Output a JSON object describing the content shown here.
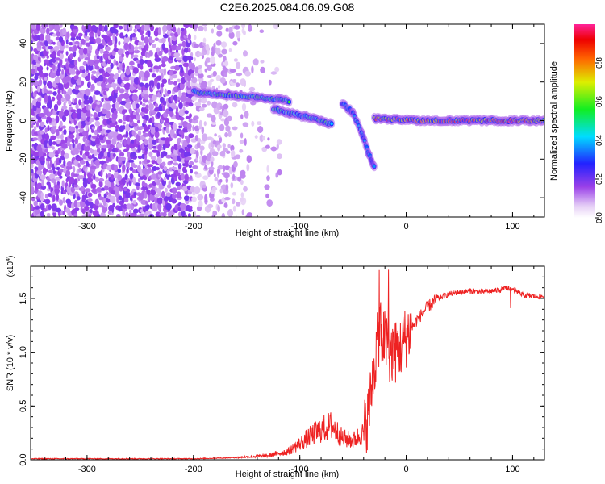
{
  "figure": {
    "title": "C2E6.2025.084.06.09.G08"
  },
  "colors": {
    "background": "#ffffff",
    "axis": "#000000",
    "snr_line": "#ee2222"
  },
  "chart_data": [
    {
      "type": "heatmap",
      "title": "C2E6.2025.084.06.09.G08",
      "xlabel": "Height of straight line (km)",
      "ylabel": "Frequency (Hz)",
      "xlim": [
        -353,
        130
      ],
      "ylim": [
        -50,
        50
      ],
      "x_ticks": [
        -300,
        -200,
        -100,
        0,
        100
      ],
      "y_ticks": [
        -40,
        -20,
        0,
        20,
        40
      ],
      "colorbar": {
        "label": "Normalized spectral amplitude",
        "ticks": [
          "0.0",
          "0.2",
          "0.4",
          "0.6",
          "0.8"
        ],
        "range": [
          0,
          1
        ],
        "colormap": "rainbow (purple-blue-cyan-green-yellow-red-magenta)"
      },
      "ridges": [
        {
          "x": [
            -200,
            -180,
            -160,
            -140,
            -120,
            -110
          ],
          "y": [
            15,
            14,
            13,
            12,
            11,
            10
          ],
          "amp": 0.55
        },
        {
          "x": [
            -125,
            -110,
            -95,
            -80,
            -70
          ],
          "y": [
            6,
            4,
            2,
            0,
            -2
          ],
          "amp": 0.5
        },
        {
          "x": [
            -60,
            -50,
            -42,
            -36,
            -30
          ],
          "y": [
            9,
            4,
            -6,
            -16,
            -24
          ],
          "amp": 0.35
        },
        {
          "x": [
            -30,
            -10,
            10,
            40,
            80,
            130
          ],
          "y": [
            1,
            0.5,
            0.2,
            0,
            0,
            0
          ],
          "amp": 0.9
        }
      ]
    },
    {
      "type": "line",
      "xlabel": "Height of straight line (km)",
      "ylabel": "SNR (10 * v/v)",
      "y_multiplier_label": "(x10",
      "y_multiplier_exp": "4",
      "y_multiplier_close": ")",
      "xlim": [
        -353,
        130
      ],
      "ylim": [
        0,
        1.8
      ],
      "x_ticks": [
        -300,
        -200,
        -100,
        0,
        100
      ],
      "y_ticks": [
        "0.0",
        "0.5",
        "1.0",
        "1.5"
      ],
      "series": [
        {
          "x": [
            -353,
            -300,
            -250,
            -200,
            -160,
            -130,
            -110,
            -100,
            -90,
            -80,
            -70,
            -60,
            -50,
            -40,
            -35,
            -30,
            -25,
            -20,
            -15,
            -10,
            -5,
            0,
            10,
            20,
            30,
            40,
            50,
            60,
            70,
            80,
            90,
            95,
            100,
            110,
            120,
            130
          ],
          "y": [
            0.01,
            0.01,
            0.01,
            0.01,
            0.02,
            0.04,
            0.08,
            0.15,
            0.22,
            0.28,
            0.32,
            0.2,
            0.18,
            0.25,
            0.45,
            0.9,
            1.2,
            1.1,
            1.0,
            1.0,
            1.05,
            1.15,
            1.3,
            1.42,
            1.5,
            1.54,
            1.56,
            1.57,
            1.56,
            1.57,
            1.58,
            1.6,
            1.58,
            1.53,
            1.52,
            1.52
          ]
        }
      ]
    }
  ]
}
